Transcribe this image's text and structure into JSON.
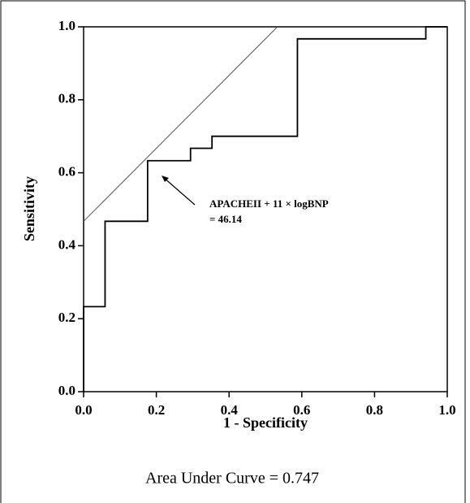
{
  "chart_data": {
    "type": "line",
    "x": [
      0,
      0,
      0.059,
      0.059,
      0.176,
      0.176,
      0.294,
      0.294,
      0.353,
      0.353,
      0.588,
      0.588,
      0.941,
      0.941,
      1
    ],
    "series": [
      {
        "color": "#000000",
        "values": [
          0,
          0.233,
          0.233,
          0.467,
          0.467,
          0.633,
          0.633,
          0.667,
          0.667,
          0.7,
          0.7,
          0.967,
          0.967,
          1,
          1
        ]
      }
    ],
    "reference_line": {
      "x": [
        0,
        0.533
      ],
      "y": [
        0.467,
        1
      ],
      "color": "#555555"
    },
    "xlabel": "1 - Specificity",
    "ylabel": "Sensitivity",
    "xlim": [
      0,
      1
    ],
    "ylim": [
      0,
      1
    ],
    "xticks": [
      {
        "value": 0,
        "label": "0.0"
      },
      0.2,
      0.4,
      0.6,
      0.8,
      {
        "value": 1,
        "label": "1.0"
      }
    ],
    "yticks": [
      {
        "value": 0,
        "label": "0.0"
      },
      0.2,
      0.4,
      0.6,
      0.8,
      {
        "value": 1,
        "label": "1.0"
      }
    ],
    "annotation": [
      "APACHEII + 11 × logBNP",
      "= 46.14"
    ],
    "caption": "Area Under Curve = 0.747"
  }
}
